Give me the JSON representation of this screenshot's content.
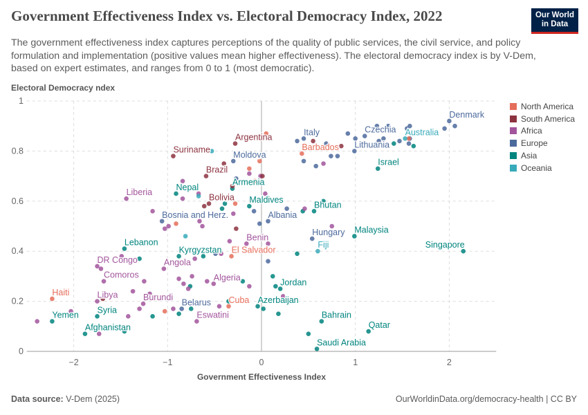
{
  "header": {
    "title": "Government Effectiveness Index vs. Electoral Democracy Index, 2022",
    "subtitle": "The government effectiveness index captures perceptions of the quality of public services, the civil service, and policy formulation and implementation (positive values mean higher effectiveness). The electoral democracy index is by V-Dem, based on expert estimates, and ranges from 0 to 1 (most democratic).",
    "logo_line1": "Our World",
    "logo_line2": "in Data"
  },
  "footer": {
    "source_label": "Data source:",
    "source": "V-Dem (2025)",
    "right": "OurWorldinData.org/democracy-health | CC BY"
  },
  "chart_data": {
    "type": "scatter",
    "title": "Government Effectiveness Index vs. Electoral Democracy Index, 2022",
    "xlabel": "Government Effectiveness Index",
    "ylabel": "Electoral Democracy ndex",
    "xlim": [
      -2.5,
      2.5
    ],
    "ylim": [
      0,
      1
    ],
    "xticks": [
      -2,
      -1,
      0,
      1,
      2
    ],
    "yticks": [
      0,
      0.2,
      0.4,
      0.6,
      0.8,
      1
    ],
    "ytick_labels": [
      "0",
      "0.2",
      "0.4",
      "0.6",
      "0.8",
      "1"
    ],
    "grid": true,
    "legend_placement": "right",
    "legend": [
      {
        "name": "North America",
        "color": "#e56e5a"
      },
      {
        "name": "South America",
        "color": "#8c3340"
      },
      {
        "name": "Africa",
        "color": "#a2559c"
      },
      {
        "name": "Europe",
        "color": "#4c6a9c"
      },
      {
        "name": "Asia",
        "color": "#00847e"
      },
      {
        "name": "Oceania",
        "color": "#38aaba"
      }
    ],
    "points": [
      {
        "label": "Denmark",
        "region": "Europe",
        "x": 2.0,
        "y": 0.92
      },
      {
        "region": "Europe",
        "x": 2.06,
        "y": 0.9
      },
      {
        "region": "Europe",
        "x": 1.23,
        "y": 0.9
      },
      {
        "region": "Europe",
        "x": 1.35,
        "y": 0.9
      },
      {
        "region": "Europe",
        "x": 0.92,
        "y": 0.87
      },
      {
        "label": "Czechia",
        "region": "Europe",
        "x": 1.1,
        "y": 0.86
      },
      {
        "region": "Europe",
        "x": 1.0,
        "y": 0.85
      },
      {
        "region": "Europe",
        "x": 1.25,
        "y": 0.84
      },
      {
        "region": "Europe",
        "x": 1.3,
        "y": 0.85
      },
      {
        "region": "Europe",
        "x": 1.58,
        "y": 0.9
      },
      {
        "region": "Europe",
        "x": 1.55,
        "y": 0.89
      },
      {
        "region": "Europe",
        "x": 1.95,
        "y": 0.89
      },
      {
        "region": "Europe",
        "x": 1.47,
        "y": 0.84
      },
      {
        "region": "Europe",
        "x": 1.58,
        "y": 0.85
      },
      {
        "region": "Europe",
        "x": 1.57,
        "y": 0.83
      },
      {
        "label": "Lithuania",
        "region": "Europe",
        "x": 0.99,
        "y": 0.8
      },
      {
        "label": "Italy",
        "region": "Europe",
        "x": 0.45,
        "y": 0.85
      },
      {
        "region": "Europe",
        "x": 0.38,
        "y": 0.84
      },
      {
        "region": "Europe",
        "x": 0.69,
        "y": 0.83
      },
      {
        "region": "Europe",
        "x": 0.45,
        "y": 0.76
      },
      {
        "region": "Europe",
        "x": 0.58,
        "y": 0.74
      },
      {
        "region": "Europe",
        "x": 0.74,
        "y": 0.78
      },
      {
        "region": "Europe",
        "x": 0.81,
        "y": 0.78
      },
      {
        "label": "Hungary",
        "region": "Europe",
        "x": 0.54,
        "y": 0.45
      },
      {
        "region": "Europe",
        "x": 0.27,
        "y": 0.57
      },
      {
        "label": "Albania",
        "region": "Europe",
        "x": 0.07,
        "y": 0.52
      },
      {
        "region": "Europe",
        "x": -0.02,
        "y": 0.51
      },
      {
        "region": "Europe",
        "x": 0.07,
        "y": 0.36
      },
      {
        "label": "Moldova",
        "region": "Europe",
        "x": -0.3,
        "y": 0.76
      },
      {
        "region": "Europe",
        "x": -0.27,
        "y": 0.69
      },
      {
        "region": "Europe",
        "x": -0.08,
        "y": 0.56
      },
      {
        "label": "Bosnia and Herz.",
        "region": "Europe",
        "x": -1.06,
        "y": 0.52
      },
      {
        "region": "Europe",
        "x": -0.49,
        "y": 0.39
      },
      {
        "label": "Belarus",
        "region": "Europe",
        "x": -0.85,
        "y": 0.17
      },
      {
        "region": "Asia",
        "x": 1.41,
        "y": 0.83
      },
      {
        "region": "Asia",
        "x": 1.62,
        "y": 0.82
      },
      {
        "label": "Israel",
        "region": "Asia",
        "x": 1.24,
        "y": 0.73
      },
      {
        "region": "Asia",
        "x": 0.66,
        "y": 0.6
      },
      {
        "region": "Asia",
        "x": 0.44,
        "y": 0.56
      },
      {
        "label": "Bhutan",
        "region": "Asia",
        "x": 0.56,
        "y": 0.56
      },
      {
        "label": "Malaysia",
        "region": "Asia",
        "x": 0.99,
        "y": 0.46
      },
      {
        "label": "Singapore",
        "region": "Asia",
        "x": 2.15,
        "y": 0.4,
        "anchor": "end"
      },
      {
        "region": "Asia",
        "x": 0.38,
        "y": 0.39
      },
      {
        "region": "Asia",
        "x": 0.12,
        "y": 0.3
      },
      {
        "region": "Asia",
        "x": 0.15,
        "y": 0.26
      },
      {
        "label": "Jordan",
        "region": "Asia",
        "x": 0.2,
        "y": 0.25
      },
      {
        "label": "Azerbaijan",
        "region": "Asia",
        "x": -0.04,
        "y": 0.18
      },
      {
        "region": "Asia",
        "x": 0.02,
        "y": 0.17
      },
      {
        "region": "Asia",
        "x": 0.18,
        "y": 0.15
      },
      {
        "label": "Bahrain",
        "region": "Asia",
        "x": 0.64,
        "y": 0.12
      },
      {
        "label": "Qatar",
        "region": "Asia",
        "x": 1.14,
        "y": 0.08
      },
      {
        "region": "Asia",
        "x": 0.5,
        "y": 0.07
      },
      {
        "label": "Saudi Arabia",
        "region": "Asia",
        "x": 0.59,
        "y": 0.01
      },
      {
        "label": "Armenia",
        "region": "Asia",
        "x": -0.31,
        "y": 0.65
      },
      {
        "label": "Nepal",
        "region": "Asia",
        "x": -0.91,
        "y": 0.63
      },
      {
        "region": "Asia",
        "x": -0.39,
        "y": 0.59
      },
      {
        "label": "Maldives",
        "region": "Asia",
        "x": -0.13,
        "y": 0.58
      },
      {
        "region": "Asia",
        "x": -0.42,
        "y": 0.57
      },
      {
        "label": "Lebanon",
        "region": "Asia",
        "x": -1.46,
        "y": 0.41
      },
      {
        "label": "Kyrgyzstan",
        "region": "Asia",
        "x": -0.88,
        "y": 0.38
      },
      {
        "region": "Asia",
        "x": -0.62,
        "y": 0.38
      },
      {
        "region": "Asia",
        "x": -1.3,
        "y": 0.37
      },
      {
        "region": "Asia",
        "x": -0.76,
        "y": 0.26
      },
      {
        "region": "Asia",
        "x": -0.2,
        "y": 0.28
      },
      {
        "region": "Asia",
        "x": -1.16,
        "y": 0.14
      },
      {
        "region": "Asia",
        "x": -0.88,
        "y": 0.15
      },
      {
        "region": "Asia",
        "x": -0.75,
        "y": 0.17
      },
      {
        "region": "Asia",
        "x": -0.35,
        "y": 0.2
      },
      {
        "label": "Yemen",
        "region": "Asia",
        "x": -2.23,
        "y": 0.12
      },
      {
        "label": "Syria",
        "region": "Asia",
        "x": -1.75,
        "y": 0.14
      },
      {
        "label": "Afghanistan",
        "region": "Asia",
        "x": -1.88,
        "y": 0.07
      },
      {
        "region": "Asia",
        "x": -1.46,
        "y": 0.08
      },
      {
        "region": "Africa",
        "x": 0.66,
        "y": 0.75
      },
      {
        "region": "Africa",
        "x": 0.46,
        "y": 0.57
      },
      {
        "region": "Africa",
        "x": 0.75,
        "y": 0.5
      },
      {
        "region": "Africa",
        "x": 0.04,
        "y": 0.63
      },
      {
        "region": "Africa",
        "x": -0.01,
        "y": 0.7
      },
      {
        "region": "Africa",
        "x": -0.13,
        "y": 0.71
      },
      {
        "region": "Africa",
        "x": -0.84,
        "y": 0.68
      },
      {
        "region": "Africa",
        "x": -0.67,
        "y": 0.63
      },
      {
        "region": "Africa",
        "x": -0.84,
        "y": 0.61
      },
      {
        "label": "Liberia",
        "region": "Africa",
        "x": -1.44,
        "y": 0.61
      },
      {
        "region": "Africa",
        "x": -1.16,
        "y": 0.56
      },
      {
        "region": "Africa",
        "x": -0.3,
        "y": 0.55
      },
      {
        "region": "Africa",
        "x": -0.66,
        "y": 0.52
      },
      {
        "region": "Africa",
        "x": -0.99,
        "y": 0.5
      },
      {
        "region": "Africa",
        "x": -1.03,
        "y": 0.49
      },
      {
        "region": "Africa",
        "x": -0.63,
        "y": 0.5
      },
      {
        "region": "Africa",
        "x": -0.34,
        "y": 0.44
      },
      {
        "label": "Benin",
        "region": "Africa",
        "x": -0.16,
        "y": 0.43
      },
      {
        "region": "Africa",
        "x": -0.43,
        "y": 0.39
      },
      {
        "region": "Africa",
        "x": -0.71,
        "y": 0.37
      },
      {
        "region": "Africa",
        "x": -1.49,
        "y": 0.38
      },
      {
        "label": "DR Congo",
        "region": "Africa",
        "x": -1.75,
        "y": 0.34
      },
      {
        "region": "Africa",
        "x": -1.71,
        "y": 0.33
      },
      {
        "label": "Angola",
        "region": "Africa",
        "x": -1.04,
        "y": 0.33
      },
      {
        "label": "Comoros",
        "region": "Africa",
        "x": -1.68,
        "y": 0.28
      },
      {
        "region": "Africa",
        "x": -1.25,
        "y": 0.28
      },
      {
        "region": "Africa",
        "x": -0.88,
        "y": 0.29
      },
      {
        "region": "Africa",
        "x": -0.74,
        "y": 0.3
      },
      {
        "region": "Africa",
        "x": -0.83,
        "y": 0.27
      },
      {
        "region": "Africa",
        "x": -0.78,
        "y": 0.25
      },
      {
        "region": "Africa",
        "x": -0.58,
        "y": 0.28
      },
      {
        "label": "Algeria",
        "region": "Africa",
        "x": -0.51,
        "y": 0.27
      },
      {
        "region": "Africa",
        "x": -0.13,
        "y": 0.26
      },
      {
        "region": "Africa",
        "x": -1.37,
        "y": 0.24
      },
      {
        "region": "Africa",
        "x": -1.19,
        "y": 0.23
      },
      {
        "label": "Libya",
        "region": "Africa",
        "x": -1.75,
        "y": 0.2
      },
      {
        "label": "Burundi",
        "region": "Africa",
        "x": -1.26,
        "y": 0.19
      },
      {
        "region": "Africa",
        "x": -1.3,
        "y": 0.17
      },
      {
        "region": "Africa",
        "x": -0.94,
        "y": 0.17
      },
      {
        "region": "Africa",
        "x": -0.45,
        "y": 0.18
      },
      {
        "region": "Africa",
        "x": -2.03,
        "y": 0.16
      },
      {
        "region": "Africa",
        "x": -2.39,
        "y": 0.12
      },
      {
        "region": "Africa",
        "x": -1.42,
        "y": 0.14
      },
      {
        "label": "Eswatini",
        "region": "Africa",
        "x": -0.69,
        "y": 0.12
      },
      {
        "region": "Africa",
        "x": -1.73,
        "y": 0.07
      },
      {
        "region": "Africa",
        "x": 0.23,
        "y": 0.22
      },
      {
        "region": "Africa",
        "x": 0.07,
        "y": 0.43
      },
      {
        "label": "Barbados",
        "region": "North America",
        "x": 0.43,
        "y": 0.79
      },
      {
        "region": "North America",
        "x": 1.57,
        "y": 0.85
      },
      {
        "region": "North America",
        "x": 0.05,
        "y": 0.87
      },
      {
        "region": "North America",
        "x": -0.13,
        "y": 0.73
      },
      {
        "region": "North America",
        "x": -0.02,
        "y": 0.76
      },
      {
        "region": "North America",
        "x": -0.07,
        "y": 0.68
      },
      {
        "region": "North America",
        "x": -0.28,
        "y": 0.59
      },
      {
        "region": "North America",
        "x": -0.91,
        "y": 0.51
      },
      {
        "label": "El Salvador",
        "region": "North America",
        "x": -0.32,
        "y": 0.38
      },
      {
        "label": "Haiti",
        "region": "North America",
        "x": -2.23,
        "y": 0.21
      },
      {
        "region": "North America",
        "x": -1.03,
        "y": 0.16
      },
      {
        "label": "Cuba",
        "region": "North America",
        "x": -0.35,
        "y": 0.18
      },
      {
        "region": "South America",
        "x": 0.55,
        "y": 0.84
      },
      {
        "region": "South America",
        "x": 0.85,
        "y": 0.82
      },
      {
        "region": "South America",
        "x": 0.01,
        "y": 0.7
      },
      {
        "label": "Argentina",
        "region": "South America",
        "x": -0.28,
        "y": 0.83
      },
      {
        "label": "Suriname",
        "region": "South America",
        "x": -0.94,
        "y": 0.78
      },
      {
        "region": "South America",
        "x": -0.4,
        "y": 0.75
      },
      {
        "label": "Brazil",
        "region": "South America",
        "x": -0.59,
        "y": 0.7
      },
      {
        "region": "South America",
        "x": -0.31,
        "y": 0.66
      },
      {
        "label": "Bolivia",
        "region": "South America",
        "x": -0.56,
        "y": 0.59
      },
      {
        "region": "South America",
        "x": -0.61,
        "y": 0.58
      },
      {
        "region": "South America",
        "x": -0.27,
        "y": 0.49
      },
      {
        "region": "South America",
        "x": -1.69,
        "y": 0.21
      },
      {
        "label": "Australia",
        "region": "Oceania",
        "x": 1.53,
        "y": 0.85
      },
      {
        "label": "Fiji",
        "region": "Oceania",
        "x": 0.6,
        "y": 0.4
      },
      {
        "region": "Oceania",
        "x": -0.53,
        "y": 0.8
      },
      {
        "region": "Oceania",
        "x": -0.67,
        "y": 0.62
      },
      {
        "region": "Oceania",
        "x": -0.81,
        "y": 0.46
      }
    ]
  }
}
